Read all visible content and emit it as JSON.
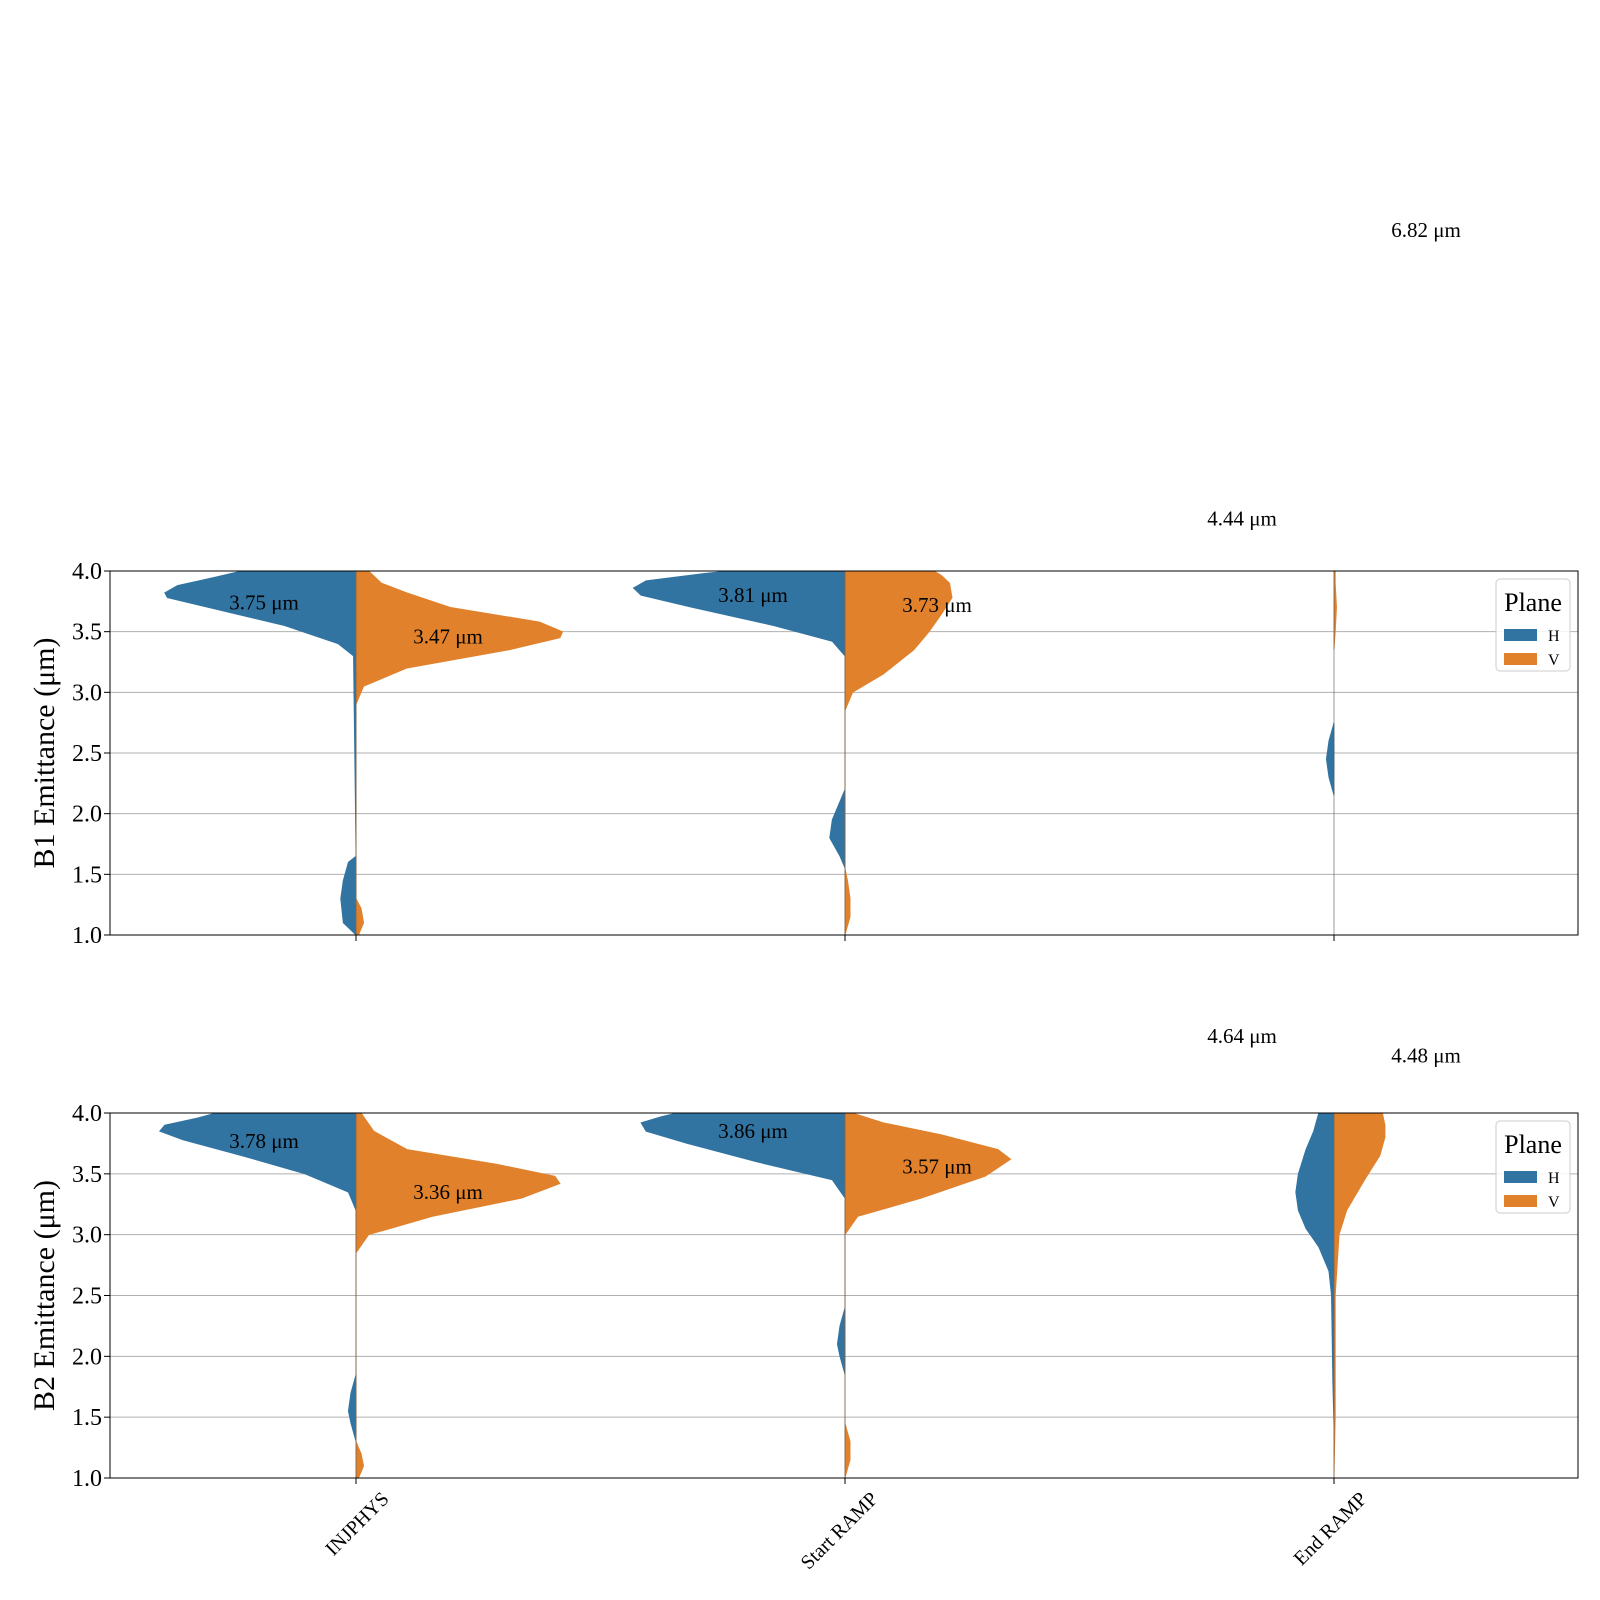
{
  "chart_data": [
    {
      "type": "violin",
      "ylabel": "B1 Emittance (μm)",
      "ylim": [
        1.0,
        4.0
      ],
      "yticks": [
        "1.0",
        "1.5",
        "2.0",
        "2.5",
        "3.0",
        "3.5",
        "4.0"
      ],
      "categories": [
        "INJPHYS",
        "Start RAMP",
        "End RAMP"
      ],
      "grid": true,
      "legend": {
        "title": "Plane",
        "entries": [
          "H",
          "V"
        ],
        "placement": "top-right"
      },
      "series": [
        {
          "name": "H",
          "color": "#3274a1",
          "median_labels": [
            "3.75 μm",
            "3.81 μm",
            "4.44 μm"
          ],
          "median_values": [
            3.75,
            3.81,
            4.44
          ],
          "profiles": [
            [
              [
                1.0,
                0.0
              ],
              [
                1.1,
                0.05
              ],
              [
                1.3,
                0.06
              ],
              [
                1.45,
                0.05
              ],
              [
                1.6,
                0.03
              ],
              [
                1.65,
                0.0
              ],
              [
                3.3,
                0.01
              ],
              [
                3.4,
                0.07
              ],
              [
                3.55,
                0.28
              ],
              [
                3.65,
                0.48
              ],
              [
                3.78,
                0.74
              ],
              [
                3.82,
                0.75
              ],
              [
                3.88,
                0.7
              ],
              [
                3.95,
                0.55
              ],
              [
                4.0,
                0.45
              ]
            ],
            [
              [
                1.55,
                0.0
              ],
              [
                1.65,
                0.02
              ],
              [
                1.8,
                0.06
              ],
              [
                1.95,
                0.05
              ],
              [
                2.15,
                0.01
              ],
              [
                2.2,
                0.0
              ],
              [
                3.3,
                0.0
              ],
              [
                3.42,
                0.05
              ],
              [
                3.55,
                0.28
              ],
              [
                3.7,
                0.6
              ],
              [
                3.8,
                0.8
              ],
              [
                3.86,
                0.83
              ],
              [
                3.92,
                0.78
              ],
              [
                3.98,
                0.55
              ],
              [
                4.0,
                0.46
              ]
            ],
            [
              [
                2.15,
                0.0
              ],
              [
                2.3,
                0.02
              ],
              [
                2.45,
                0.03
              ],
              [
                2.6,
                0.02
              ],
              [
                2.75,
                0.0
              ]
            ]
          ]
        },
        {
          "name": "V",
          "color": "#e1812c",
          "median_labels": [
            "3.47 μm",
            "3.73 μm",
            "6.82 μm"
          ],
          "median_values": [
            3.47,
            3.73,
            6.82
          ],
          "profiles": [
            [
              [
                1.0,
                0.01
              ],
              [
                1.1,
                0.03
              ],
              [
                1.22,
                0.02
              ],
              [
                1.3,
                0.0
              ],
              [
                2.9,
                0.0
              ],
              [
                3.05,
                0.03
              ],
              [
                3.2,
                0.2
              ],
              [
                3.35,
                0.6
              ],
              [
                3.45,
                0.8
              ],
              [
                3.5,
                0.81
              ],
              [
                3.58,
                0.72
              ],
              [
                3.7,
                0.37
              ],
              [
                3.82,
                0.2
              ],
              [
                3.9,
                0.1
              ],
              [
                4.0,
                0.05
              ]
            ],
            [
              [
                1.0,
                0.0
              ],
              [
                1.15,
                0.02
              ],
              [
                1.3,
                0.02
              ],
              [
                1.45,
                0.01
              ],
              [
                1.55,
                0.0
              ],
              [
                2.85,
                0.0
              ],
              [
                3.0,
                0.03
              ],
              [
                3.15,
                0.15
              ],
              [
                3.35,
                0.27
              ],
              [
                3.5,
                0.33
              ],
              [
                3.65,
                0.38
              ],
              [
                3.78,
                0.42
              ],
              [
                3.9,
                0.41
              ],
              [
                3.96,
                0.38
              ],
              [
                4.0,
                0.35
              ]
            ],
            [
              [
                3.35,
                0.0
              ],
              [
                3.5,
                0.005
              ],
              [
                3.7,
                0.01
              ],
              [
                3.9,
                0.005
              ],
              [
                4.0,
                0.005
              ]
            ]
          ]
        }
      ]
    },
    {
      "type": "violin",
      "ylabel": "B2 Emittance (μm)",
      "ylim": [
        1.0,
        4.0
      ],
      "yticks": [
        "1.0",
        "1.5",
        "2.0",
        "2.5",
        "3.0",
        "3.5",
        "4.0"
      ],
      "categories": [
        "INJPHYS",
        "Start RAMP",
        "End RAMP"
      ],
      "xtick_labels": [
        "INJPHYS",
        "Start RAMP",
        "End RAMP"
      ],
      "grid": true,
      "legend": {
        "title": "Plane",
        "entries": [
          "H",
          "V"
        ],
        "placement": "top-right"
      },
      "series": [
        {
          "name": "H",
          "color": "#3274a1",
          "median_labels": [
            "3.78 μm",
            "3.86 μm",
            "4.64 μm"
          ],
          "median_values": [
            3.78,
            3.86,
            4.64
          ],
          "profiles": [
            [
              [
                1.3,
                0.0
              ],
              [
                1.45,
                0.02
              ],
              [
                1.55,
                0.03
              ],
              [
                1.7,
                0.02
              ],
              [
                1.85,
                0.0
              ],
              [
                3.2,
                0.0
              ],
              [
                3.35,
                0.03
              ],
              [
                3.5,
                0.2
              ],
              [
                3.65,
                0.45
              ],
              [
                3.78,
                0.68
              ],
              [
                3.85,
                0.77
              ],
              [
                3.9,
                0.75
              ],
              [
                3.96,
                0.62
              ],
              [
                4.0,
                0.55
              ]
            ],
            [
              [
                1.85,
                0.0
              ],
              [
                2.0,
                0.02
              ],
              [
                2.1,
                0.03
              ],
              [
                2.25,
                0.02
              ],
              [
                2.4,
                0.0
              ],
              [
                3.3,
                0.0
              ],
              [
                3.45,
                0.05
              ],
              [
                3.6,
                0.35
              ],
              [
                3.75,
                0.62
              ],
              [
                3.85,
                0.78
              ],
              [
                3.92,
                0.8
              ],
              [
                3.97,
                0.72
              ],
              [
                4.0,
                0.66
              ]
            ],
            [
              [
                1.4,
                0.0
              ],
              [
                1.8,
                0.005
              ],
              [
                2.5,
                0.01
              ],
              [
                2.7,
                0.02
              ],
              [
                2.9,
                0.06
              ],
              [
                3.05,
                0.11
              ],
              [
                3.2,
                0.14
              ],
              [
                3.35,
                0.15
              ],
              [
                3.5,
                0.14
              ],
              [
                3.7,
                0.11
              ],
              [
                3.85,
                0.08
              ],
              [
                4.0,
                0.06
              ]
            ]
          ]
        },
        {
          "name": "V",
          "color": "#e1812c",
          "median_labels": [
            "3.36 μm",
            "3.57 μm",
            "4.48 μm"
          ],
          "median_values": [
            3.36,
            3.57,
            4.48
          ],
          "profiles": [
            [
              [
                1.0,
                0.01
              ],
              [
                1.1,
                0.03
              ],
              [
                1.2,
                0.02
              ],
              [
                1.3,
                0.0
              ],
              [
                2.85,
                0.0
              ],
              [
                3.0,
                0.05
              ],
              [
                3.15,
                0.3
              ],
              [
                3.3,
                0.65
              ],
              [
                3.42,
                0.8
              ],
              [
                3.48,
                0.78
              ],
              [
                3.58,
                0.55
              ],
              [
                3.7,
                0.2
              ],
              [
                3.85,
                0.07
              ],
              [
                4.0,
                0.02
              ]
            ],
            [
              [
                1.0,
                0.0
              ],
              [
                1.15,
                0.02
              ],
              [
                1.3,
                0.02
              ],
              [
                1.45,
                0.0
              ],
              [
                3.0,
                0.0
              ],
              [
                3.15,
                0.05
              ],
              [
                3.3,
                0.3
              ],
              [
                3.48,
                0.55
              ],
              [
                3.62,
                0.65
              ],
              [
                3.7,
                0.6
              ],
              [
                3.82,
                0.38
              ],
              [
                3.92,
                0.15
              ],
              [
                4.0,
                0.03
              ]
            ],
            [
              [
                1.0,
                0.0
              ],
              [
                1.5,
                0.005
              ],
              [
                2.5,
                0.005
              ],
              [
                3.0,
                0.02
              ],
              [
                3.2,
                0.05
              ],
              [
                3.45,
                0.12
              ],
              [
                3.65,
                0.18
              ],
              [
                3.8,
                0.2
              ],
              [
                3.9,
                0.2
              ],
              [
                4.0,
                0.19
              ]
            ]
          ]
        }
      ]
    }
  ]
}
